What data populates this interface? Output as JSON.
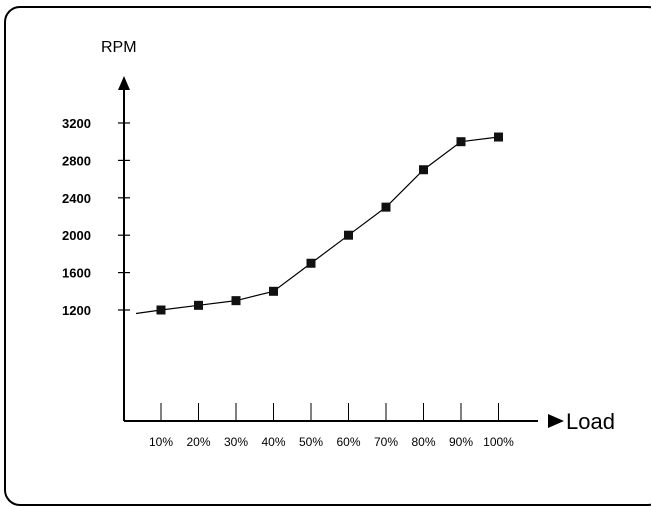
{
  "chart_data": {
    "type": "line",
    "ylabel": "RPM",
    "xlabel": "Load",
    "categories": [
      "10%",
      "20%",
      "30%",
      "40%",
      "50%",
      "60%",
      "70%",
      "80%",
      "90%",
      "100%"
    ],
    "values": [
      1200,
      1250,
      1300,
      1400,
      1700,
      2000,
      2300,
      2700,
      3000,
      3050
    ],
    "yticks": [
      1200,
      1600,
      2000,
      2400,
      2800,
      3200
    ],
    "ylim": [
      0,
      3200
    ],
    "grid": false,
    "legend": "none",
    "colors": {
      "line": "#000000",
      "marker": "#111111",
      "axis": "#000000"
    }
  }
}
